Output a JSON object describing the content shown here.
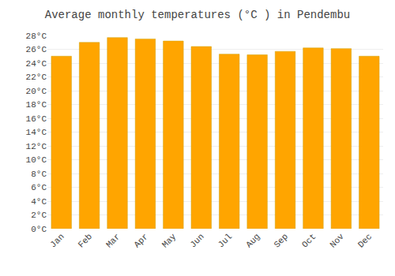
{
  "chart_data": {
    "type": "bar",
    "title": "Average monthly temperatures (°C ) in Pendembu",
    "categories": [
      "Jan",
      "Feb",
      "Mar",
      "Apr",
      "May",
      "Jun",
      "Jul",
      "Aug",
      "Sep",
      "Oct",
      "Nov",
      "Dec"
    ],
    "values": [
      25.0,
      27.0,
      27.7,
      27.5,
      27.2,
      26.4,
      25.3,
      25.2,
      25.7,
      26.2,
      26.1,
      25.0
    ],
    "color": "#FFA500",
    "ylim": [
      0,
      28
    ],
    "yticks": [
      {
        "value": 0,
        "label": "0°C"
      },
      {
        "value": 2,
        "label": "2°C"
      },
      {
        "value": 4,
        "label": "4°C"
      },
      {
        "value": 6,
        "label": "6°C"
      },
      {
        "value": 8,
        "label": "8°C"
      },
      {
        "value": 10,
        "label": "10°C"
      },
      {
        "value": 12,
        "label": "12°C"
      },
      {
        "value": 14,
        "label": "14°C"
      },
      {
        "value": 16,
        "label": "16°C"
      },
      {
        "value": 18,
        "label": "18°C"
      },
      {
        "value": 20,
        "label": "20°C"
      },
      {
        "value": 22,
        "label": "22°C"
      },
      {
        "value": 24,
        "label": "24°C"
      },
      {
        "value": 26,
        "label": "26°C"
      },
      {
        "value": 28,
        "label": "28°C"
      }
    ],
    "grid": true
  }
}
